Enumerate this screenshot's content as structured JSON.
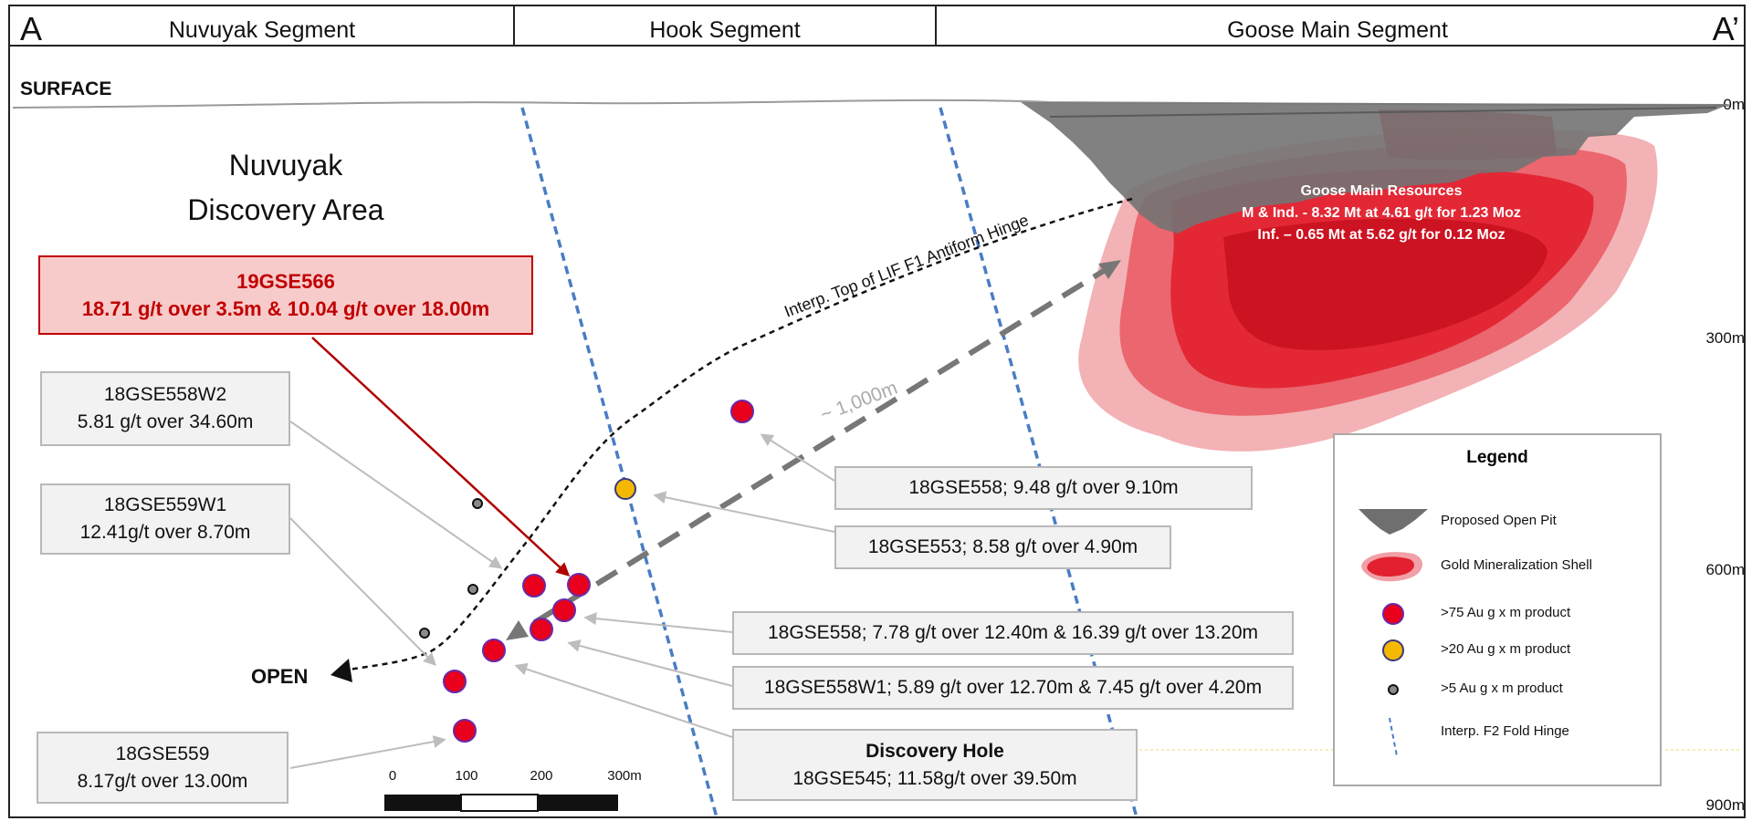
{
  "header": {
    "left_marker": "A",
    "right_marker": "A’",
    "segments": [
      "Nuvuyak Segment",
      "Hook Segment",
      "Goose Main Segment"
    ]
  },
  "surface_label": "SURFACE",
  "depth_labels": [
    "0m",
    "300m",
    "600m",
    "900m"
  ],
  "area_title": [
    "Nuvuyak",
    "Discovery Area"
  ],
  "open_label": "OPEN",
  "hinge_label": "Interp. Top of LIF F1 Antiform Hinge",
  "distance_label": "~ 1,000m",
  "resources": {
    "title": "Goose Main Resources",
    "line1": "M & Ind.  - 8.32 Mt at 4.61 g/t for 1.23 Moz",
    "line2": "Inf. – 0.65 Mt at 5.62 g/t for 0.12 Moz"
  },
  "highlight_hole": {
    "name": "19GSE566",
    "result": "18.71 g/t over 3.5m & 10.04 g/t over 18.00m"
  },
  "drill_results": [
    {
      "name": "18GSE558W2",
      "result": "5.81 g/t over 34.60m"
    },
    {
      "name": "18GSE559W1",
      "result": "12.41g/t over 8.70m"
    },
    {
      "name": "18GSE559",
      "result": "8.17g/t over 13.00m"
    },
    {
      "text": "18GSE558; 9.48 g/t over 9.10m"
    },
    {
      "text": "18GSE553; 8.58 g/t over 4.90m"
    },
    {
      "text": "18GSE558; 7.78 g/t over 12.40m & 16.39 g/t over 13.20m"
    },
    {
      "text": "18GSE558W1; 5.89 g/t over 12.70m & 7.45 g/t over 4.20m"
    },
    {
      "title": "Discovery Hole",
      "text": "18GSE545; 11.58g/t over 39.50m"
    }
  ],
  "scale_bar": {
    "labels": [
      "0",
      "100",
      "200",
      "300m"
    ]
  },
  "legend": {
    "title": "Legend",
    "items": [
      {
        "icon": "open-pit-icon",
        "label": "Proposed Open Pit"
      },
      {
        "icon": "mineralization-shell-icon",
        "label": "Gold Mineralization Shell"
      },
      {
        "icon": "red-circle-icon",
        "label": ">75 Au g x m product"
      },
      {
        "icon": "yellow-circle-icon",
        "label": ">20 Au g x m product"
      },
      {
        "icon": "small-grey-circle-icon",
        "label": ">5 Au g x m product"
      },
      {
        "icon": "blue-dashed-line-icon",
        "label": "Interp. F2 Fold Hinge"
      }
    ]
  },
  "colors": {
    "red_intercept": "#e8001c",
    "yellow_intercept": "#f5b800",
    "fold_hinge": "#4a7cc4",
    "pit_grey": "#6f6f6f",
    "callout_red": "#c00000"
  }
}
